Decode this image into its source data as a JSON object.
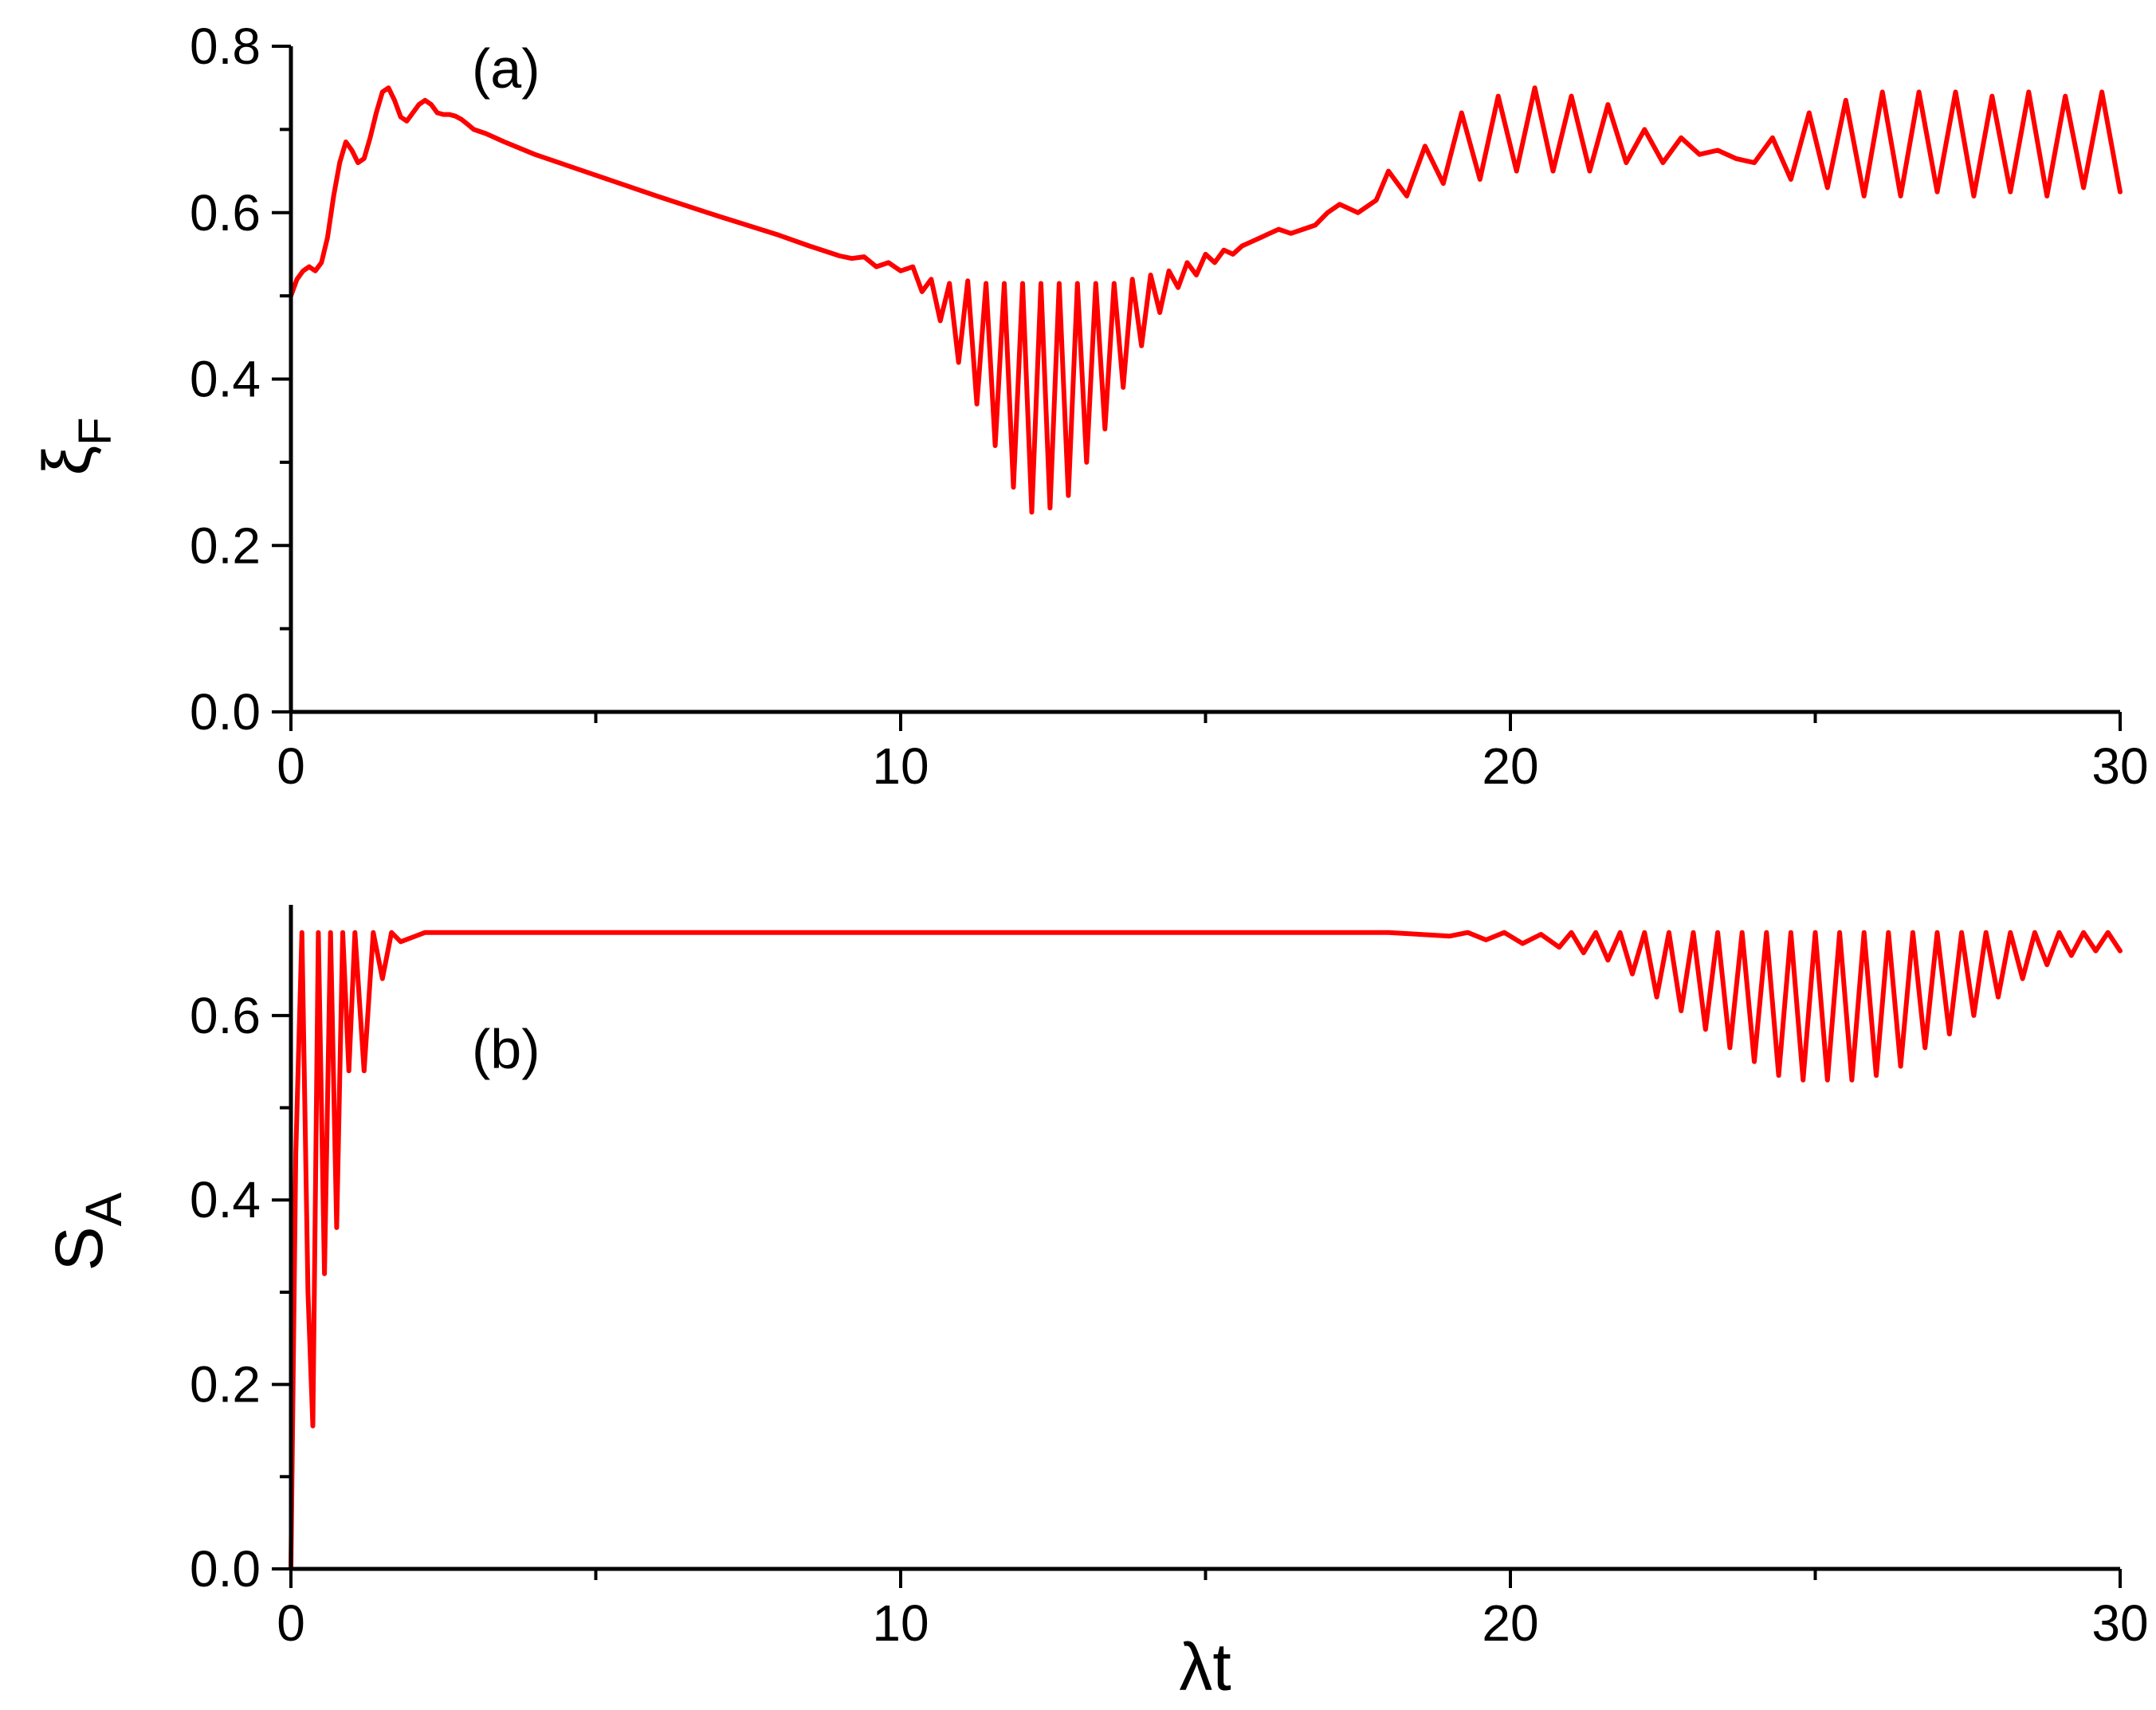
{
  "chart_data": [
    {
      "type": "line",
      "panel_label": "(a)",
      "ylabel": "ξ",
      "ylabel_sub": "F",
      "xlim": [
        0,
        30
      ],
      "ylim": [
        0,
        0.8
      ],
      "xticks": [
        0,
        10,
        20,
        30
      ],
      "xtick_labels": [
        "0",
        "10",
        "20",
        "30"
      ],
      "yticks": [
        0.0,
        0.2,
        0.4,
        0.6,
        0.8
      ],
      "ytick_labels": [
        "0.0",
        "0.2",
        "0.4",
        "0.6",
        "0.8"
      ],
      "grid": false,
      "series": [
        {
          "color": "#ff0000",
          "x": [
            0,
            0.1,
            0.2,
            0.3,
            0.4,
            0.5,
            0.6,
            0.7,
            0.8,
            0.9,
            1.0,
            1.1,
            1.2,
            1.3,
            1.4,
            1.5,
            1.6,
            1.7,
            1.8,
            1.9,
            2.0,
            2.1,
            2.2,
            2.3,
            2.4,
            2.5,
            2.6,
            2.7,
            2.8,
            2.9,
            3.0,
            3.2,
            3.5,
            4.0,
            5.0,
            6.0,
            7.0,
            8.0,
            8.5,
            9.0,
            9.2,
            9.4,
            9.6,
            9.8,
            10.0,
            10.2,
            10.35,
            10.5,
            10.65,
            10.8,
            10.95,
            11.1,
            11.25,
            11.4,
            11.55,
            11.7,
            11.85,
            12.0,
            12.15,
            12.3,
            12.45,
            12.6,
            12.75,
            12.9,
            13.05,
            13.2,
            13.35,
            13.5,
            13.65,
            13.8,
            13.95,
            14.1,
            14.25,
            14.4,
            14.55,
            14.7,
            14.85,
            15.0,
            15.15,
            15.3,
            15.45,
            15.6,
            15.75,
            15.9,
            16.05,
            16.2,
            16.4,
            16.6,
            16.8,
            17.0,
            17.2,
            17.5,
            17.8,
            18.0,
            18.3,
            18.6,
            18.9,
            19.2,
            19.5,
            19.8,
            20.1,
            20.4,
            20.7,
            21.0,
            21.3,
            21.6,
            21.9,
            22.2,
            22.5,
            22.8,
            23.1,
            23.4,
            23.7,
            24.0,
            24.3,
            24.6,
            24.9,
            25.2,
            25.5,
            25.8,
            26.1,
            26.4,
            26.7,
            27.0,
            27.3,
            27.6,
            27.9,
            28.2,
            28.5,
            28.8,
            29.1,
            29.4,
            29.7,
            30.0
          ],
          "values": [
            0.5,
            0.52,
            0.53,
            0.535,
            0.53,
            0.54,
            0.57,
            0.62,
            0.66,
            0.685,
            0.675,
            0.66,
            0.665,
            0.69,
            0.72,
            0.745,
            0.75,
            0.735,
            0.715,
            0.71,
            0.72,
            0.73,
            0.735,
            0.73,
            0.72,
            0.718,
            0.718,
            0.716,
            0.712,
            0.706,
            0.7,
            0.695,
            0.685,
            0.67,
            0.645,
            0.62,
            0.596,
            0.573,
            0.56,
            0.548,
            0.545,
            0.547,
            0.535,
            0.54,
            0.53,
            0.535,
            0.505,
            0.52,
            0.47,
            0.515,
            0.42,
            0.518,
            0.37,
            0.515,
            0.32,
            0.515,
            0.27,
            0.515,
            0.24,
            0.515,
            0.245,
            0.515,
            0.26,
            0.515,
            0.3,
            0.515,
            0.34,
            0.515,
            0.39,
            0.52,
            0.44,
            0.525,
            0.48,
            0.53,
            0.51,
            0.54,
            0.525,
            0.55,
            0.54,
            0.555,
            0.55,
            0.56,
            0.565,
            0.57,
            0.575,
            0.58,
            0.575,
            0.58,
            0.585,
            0.6,
            0.61,
            0.6,
            0.615,
            0.65,
            0.62,
            0.68,
            0.635,
            0.72,
            0.64,
            0.74,
            0.65,
            0.75,
            0.65,
            0.74,
            0.65,
            0.73,
            0.66,
            0.7,
            0.66,
            0.69,
            0.67,
            0.675,
            0.665,
            0.66,
            0.69,
            0.64,
            0.72,
            0.63,
            0.735,
            0.62,
            0.745,
            0.62,
            0.745,
            0.625,
            0.745,
            0.62,
            0.74,
            0.625,
            0.745,
            0.62,
            0.74,
            0.63,
            0.745,
            0.625
          ]
        }
      ]
    },
    {
      "type": "line",
      "panel_label": "(b)",
      "xlabel": "λt",
      "ylabel": "S",
      "ylabel_sub": "A",
      "xlim": [
        0,
        30
      ],
      "ylim": [
        0,
        0.72
      ],
      "xticks": [
        0,
        10,
        20,
        30
      ],
      "xtick_labels": [
        "0",
        "10",
        "20",
        "30"
      ],
      "yticks": [
        0.0,
        0.2,
        0.4,
        0.6
      ],
      "ytick_labels": [
        "0.0",
        "0.2",
        "0.4",
        "0.6"
      ],
      "grid": false,
      "series": [
        {
          "color": "#ff0000",
          "x": [
            0,
            0.08,
            0.18,
            0.28,
            0.36,
            0.45,
            0.55,
            0.65,
            0.75,
            0.85,
            0.95,
            1.05,
            1.2,
            1.35,
            1.5,
            1.65,
            1.8,
            2.0,
            2.2,
            2.5,
            3.0,
            5.0,
            10.0,
            15.0,
            18.0,
            18.5,
            19.0,
            19.3,
            19.6,
            19.9,
            20.2,
            20.5,
            20.8,
            21.0,
            21.2,
            21.4,
            21.6,
            21.8,
            22.0,
            22.2,
            22.4,
            22.6,
            22.8,
            23.0,
            23.2,
            23.4,
            23.6,
            23.8,
            24.0,
            24.2,
            24.4,
            24.6,
            24.8,
            25.0,
            25.2,
            25.4,
            25.6,
            25.8,
            26.0,
            26.2,
            26.4,
            26.6,
            26.8,
            27.0,
            27.2,
            27.4,
            27.6,
            27.8,
            28.0,
            28.2,
            28.4,
            28.6,
            28.8,
            29.0,
            29.2,
            29.4,
            29.6,
            29.8,
            30.0
          ],
          "values": [
            0.0,
            0.45,
            0.69,
            0.3,
            0.155,
            0.69,
            0.32,
            0.69,
            0.37,
            0.69,
            0.54,
            0.69,
            0.54,
            0.69,
            0.64,
            0.69,
            0.68,
            0.685,
            0.69,
            0.69,
            0.69,
            0.69,
            0.69,
            0.69,
            0.69,
            0.688,
            0.686,
            0.69,
            0.682,
            0.69,
            0.678,
            0.688,
            0.674,
            0.69,
            0.668,
            0.69,
            0.66,
            0.69,
            0.645,
            0.69,
            0.62,
            0.69,
            0.605,
            0.69,
            0.585,
            0.69,
            0.565,
            0.69,
            0.55,
            0.69,
            0.535,
            0.69,
            0.53,
            0.69,
            0.53,
            0.69,
            0.53,
            0.69,
            0.535,
            0.69,
            0.545,
            0.69,
            0.565,
            0.69,
            0.58,
            0.69,
            0.6,
            0.69,
            0.62,
            0.69,
            0.64,
            0.69,
            0.655,
            0.69,
            0.665,
            0.69,
            0.67,
            0.69,
            0.67
          ]
        }
      ]
    }
  ]
}
